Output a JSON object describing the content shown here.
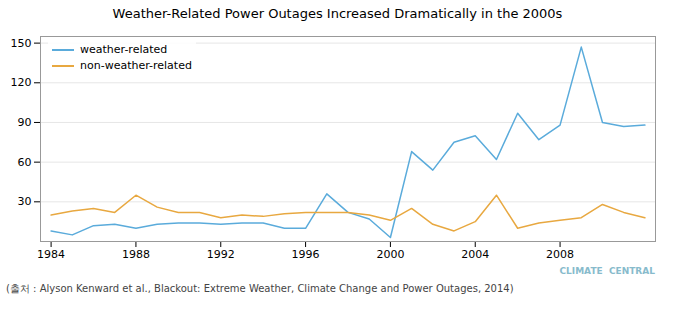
{
  "chart_data": {
    "type": "line",
    "title": "Weather-Related Power Outages Increased Dramatically in the 2000s",
    "caption": "(출처 : Alyson Kenward et al., Blackout: Extreme Weather, Climate Change and Power Outages, 2014)",
    "annotations": [
      "CLIMATE  CENTRAL"
    ],
    "x": [
      1984,
      1985,
      1986,
      1987,
      1988,
      1989,
      1990,
      1991,
      1992,
      1993,
      1994,
      1995,
      1996,
      1997,
      1998,
      1999,
      2000,
      2001,
      2002,
      2003,
      2004,
      2005,
      2006,
      2007,
      2008,
      2009,
      2010,
      2011,
      2012
    ],
    "series": [
      {
        "name": "weather-related",
        "color": "#5aabdb",
        "values": [
          8,
          5,
          12,
          13,
          10,
          13,
          14,
          14,
          13,
          14,
          14,
          10,
          10,
          36,
          22,
          17,
          3,
          68,
          54,
          75,
          80,
          62,
          97,
          77,
          88,
          147,
          90,
          87,
          88
        ]
      },
      {
        "name": "non-weather-related",
        "color": "#e8a840",
        "values": [
          20,
          23,
          25,
          22,
          35,
          26,
          22,
          22,
          18,
          20,
          19,
          21,
          22,
          22,
          22,
          20,
          16,
          25,
          13,
          8,
          15,
          35,
          10,
          14,
          16,
          18,
          28,
          22,
          18
        ]
      }
    ],
    "xlim": [
      1983.5,
      2012.5
    ],
    "xticks": [
      1984,
      1988,
      1992,
      1996,
      2000,
      2004,
      2008
    ],
    "ylim": [
      0,
      155
    ],
    "yticks": [
      30,
      60,
      90,
      120,
      150
    ],
    "grid": true,
    "legend": "upper left"
  }
}
